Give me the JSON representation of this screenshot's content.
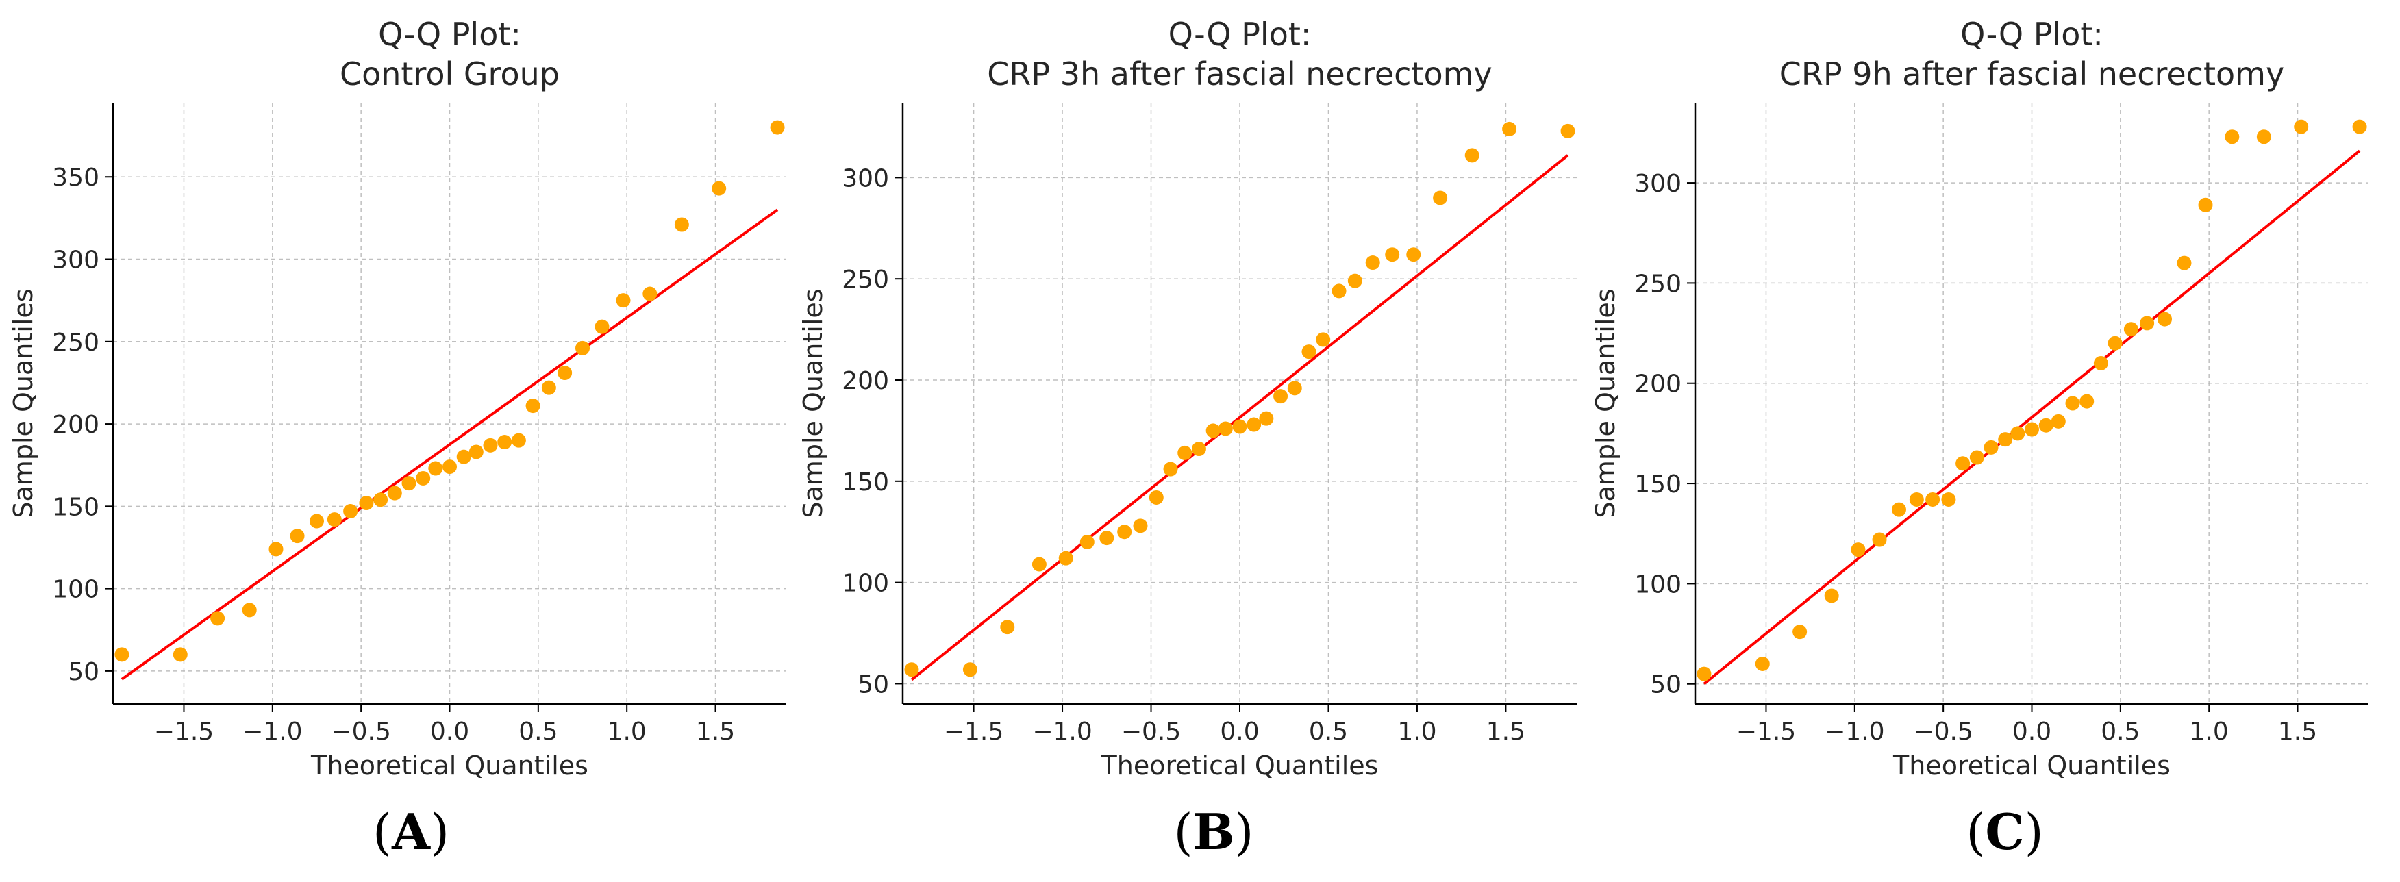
{
  "colors": {
    "point": "#ffa500",
    "line": "#ff0000",
    "axis": "#000000",
    "grid": "#b0b0b0",
    "text": "#262626"
  },
  "panels": [
    {
      "title_line1": "Q-Q Plot:",
      "title_line2": "Control Group",
      "xlabel": "Theoretical Quantiles",
      "ylabel": "Sample Quantiles",
      "letter": "A"
    },
    {
      "title_line1": "Q-Q Plot:",
      "title_line2": "CRP 3h after fascial necrectomy",
      "xlabel": "Theoretical Quantiles",
      "ylabel": "Sample Quantiles",
      "letter": "B"
    },
    {
      "title_line1": "Q-Q Plot:",
      "title_line2": "CRP 9h after fascial necrectomy",
      "xlabel": "Theoretical Quantiles",
      "ylabel": "Sample Quantiles",
      "letter": "C"
    }
  ],
  "chart_data": [
    {
      "type": "scatter",
      "title": "Q-Q Plot:\nControl Group",
      "xlabel": "Theoretical Quantiles",
      "ylabel": "Sample Quantiles",
      "xlim": [
        -1.9,
        1.9
      ],
      "ylim": [
        30,
        395
      ],
      "xticks": [
        -1.5,
        -1.0,
        -0.5,
        0.0,
        0.5,
        1.0,
        1.5
      ],
      "xtick_labels": [
        "−1.5",
        "−1.0",
        "−0.5",
        "0.0",
        "0.5",
        "1.0",
        "1.5"
      ],
      "yticks": [
        50,
        100,
        150,
        200,
        250,
        300,
        350
      ],
      "ytick_labels": [
        "50",
        "100",
        "150",
        "200",
        "250",
        "300",
        "350"
      ],
      "grid": true,
      "series": [
        {
          "type": "scatter",
          "x": [
            -1.85,
            -1.52,
            -1.31,
            -1.13,
            -0.98,
            -0.86,
            -0.75,
            -0.65,
            -0.56,
            -0.47,
            -0.39,
            -0.31,
            -0.23,
            -0.15,
            -0.08,
            0.0,
            0.08,
            0.15,
            0.23,
            0.31,
            0.39,
            0.47,
            0.56,
            0.65,
            0.75,
            0.86,
            0.98,
            1.13,
            1.31,
            1.52,
            1.85
          ],
          "y": [
            60,
            60,
            82,
            87,
            124,
            132,
            141,
            142,
            147,
            152,
            154,
            158,
            164,
            167,
            173,
            174,
            180,
            183,
            187,
            189,
            190,
            211,
            222,
            231,
            246,
            259,
            275,
            279,
            321,
            343,
            380
          ]
        },
        {
          "type": "line",
          "x": [
            -1.85,
            1.85
          ],
          "y": [
            45,
            330
          ]
        }
      ]
    },
    {
      "type": "scatter",
      "title": "Q-Q Plot:\nCRP 3h after fascial necrectomy",
      "xlabel": "Theoretical Quantiles",
      "ylabel": "Sample Quantiles",
      "xlim": [
        -1.9,
        1.9
      ],
      "ylim": [
        40,
        337
      ],
      "xticks": [
        -1.5,
        -1.0,
        -0.5,
        0.0,
        0.5,
        1.0,
        1.5
      ],
      "xtick_labels": [
        "−1.5",
        "−1.0",
        "−0.5",
        "0.0",
        "0.5",
        "1.0",
        "1.5"
      ],
      "yticks": [
        50,
        100,
        150,
        200,
        250,
        300
      ],
      "ytick_labels": [
        "50",
        "100",
        "150",
        "200",
        "250",
        "300"
      ],
      "grid": true,
      "series": [
        {
          "type": "scatter",
          "x": [
            -1.85,
            -1.52,
            -1.31,
            -1.13,
            -0.98,
            -0.86,
            -0.75,
            -0.65,
            -0.56,
            -0.47,
            -0.39,
            -0.31,
            -0.23,
            -0.15,
            -0.08,
            0.0,
            0.08,
            0.15,
            0.23,
            0.31,
            0.39,
            0.47,
            0.56,
            0.65,
            0.75,
            0.86,
            0.98,
            1.13,
            1.31,
            1.52,
            1.85
          ],
          "y": [
            57,
            57,
            78,
            109,
            112,
            120,
            122,
            125,
            128,
            142,
            156,
            164,
            166,
            175,
            176,
            177,
            178,
            181,
            192,
            196,
            214,
            220,
            244,
            249,
            258,
            262,
            262,
            290,
            311,
            324,
            323
          ]
        },
        {
          "type": "line",
          "x": [
            -1.85,
            1.85
          ],
          "y": [
            52,
            311
          ]
        }
      ]
    },
    {
      "type": "scatter",
      "title": "Q-Q Plot:\nCRP 9h after fascial necrectomy",
      "xlabel": "Theoretical Quantiles",
      "ylabel": "Sample Quantiles",
      "xlim": [
        -1.9,
        1.9
      ],
      "ylim": [
        40,
        340
      ],
      "xticks": [
        -1.5,
        -1.0,
        -0.5,
        0.0,
        0.5,
        1.0,
        1.5
      ],
      "xtick_labels": [
        "−1.5",
        "−1.0",
        "−0.5",
        "0.0",
        "0.5",
        "1.0",
        "1.5"
      ],
      "yticks": [
        50,
        100,
        150,
        200,
        250,
        300
      ],
      "ytick_labels": [
        "50",
        "100",
        "150",
        "200",
        "250",
        "300"
      ],
      "grid": true,
      "series": [
        {
          "type": "scatter",
          "x": [
            -1.85,
            -1.52,
            -1.31,
            -1.13,
            -0.98,
            -0.86,
            -0.75,
            -0.65,
            -0.56,
            -0.47,
            -0.39,
            -0.31,
            -0.23,
            -0.15,
            -0.08,
            0.0,
            0.08,
            0.15,
            0.23,
            0.31,
            0.39,
            0.47,
            0.56,
            0.65,
            0.75,
            0.86,
            0.98,
            1.13,
            1.31,
            1.52,
            1.85
          ],
          "y": [
            55,
            60,
            76,
            94,
            117,
            122,
            137,
            142,
            142,
            142,
            160,
            163,
            168,
            172,
            175,
            177,
            179,
            181,
            190,
            191,
            210,
            220,
            227,
            230,
            232,
            260,
            289,
            323,
            323,
            328,
            328
          ]
        },
        {
          "type": "line",
          "x": [
            -1.85,
            1.85
          ],
          "y": [
            50,
            316
          ]
        }
      ]
    }
  ]
}
